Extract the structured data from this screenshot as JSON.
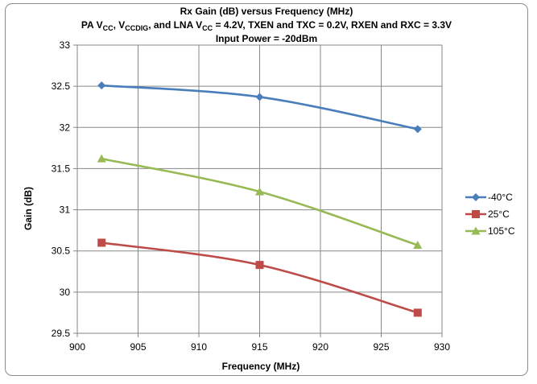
{
  "chart_data": {
    "type": "line",
    "title_lines": [
      "Rx Gain (dB) versus Frequency (MHz)",
      "PA V_CC, V_CCDIG, and LNA V_CC = 4.2V, TXEN and TXC = 0.2V, RXEN and RXC = 3.3V",
      "Input Power = -20dBm"
    ],
    "title_parts": {
      "line2": [
        {
          "t": "PA V",
          "sub": false
        },
        {
          "t": "CC",
          "sub": true
        },
        {
          "t": ", V",
          "sub": false
        },
        {
          "t": "CCDIG",
          "sub": true
        },
        {
          "t": ", and LNA V",
          "sub": false
        },
        {
          "t": "CC",
          "sub": true
        },
        {
          "t": "  = 4.2V, TXEN and TXC = 0.2V, RXEN and RXC = 3.3V",
          "sub": false
        }
      ]
    },
    "xlabel": "Frequency (MHz)",
    "ylabel": "Gain (dB)",
    "xlim": [
      900,
      930
    ],
    "ylim": [
      29.5,
      33
    ],
    "x_ticks": [
      900,
      905,
      910,
      915,
      920,
      925,
      930
    ],
    "y_ticks": [
      "29.5",
      "30",
      "30.5",
      "31",
      "31.5",
      "32",
      "32.5",
      "33"
    ],
    "grid": true,
    "legend_position": "right",
    "series": [
      {
        "name": "-40°C",
        "color": "#4A7EBB",
        "marker": "diamond",
        "x": [
          902,
          915,
          928
        ],
        "y": [
          32.51,
          32.37,
          31.98
        ]
      },
      {
        "name": "25°C",
        "color": "#BE4B48",
        "marker": "square",
        "x": [
          902,
          915,
          928
        ],
        "y": [
          30.6,
          30.33,
          29.75
        ]
      },
      {
        "name": "105°C",
        "color": "#98B954",
        "marker": "triangle",
        "x": [
          902,
          915,
          928
        ],
        "y": [
          31.62,
          31.22,
          30.57
        ]
      }
    ]
  }
}
